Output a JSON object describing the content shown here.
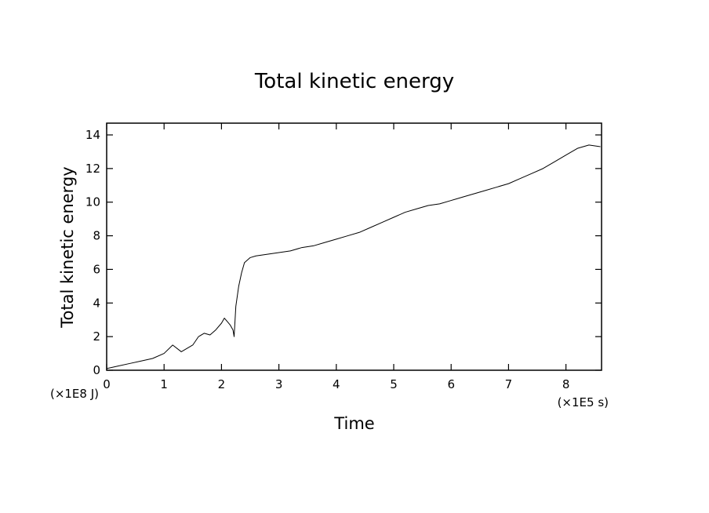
{
  "chart_data": {
    "type": "line",
    "title": "Total kinetic energy",
    "xlabel": "Time",
    "ylabel": "Total kinetic energy",
    "x_unit_label": "(×1E5 s)",
    "y_unit_label": "(×1E8 J)",
    "xlim": [
      0,
      8.62
    ],
    "ylim": [
      0,
      14.7
    ],
    "x_ticks": [
      0,
      1,
      2,
      3,
      4,
      5,
      6,
      7,
      8
    ],
    "y_ticks": [
      0,
      2,
      4,
      6,
      8,
      10,
      12,
      14
    ],
    "x_tick_labels": [
      "0",
      "1",
      "2",
      "3",
      "4",
      "5",
      "6",
      "7",
      "8"
    ],
    "y_tick_labels": [
      "0",
      "2",
      "4",
      "6",
      "8",
      "10",
      "12",
      "14"
    ],
    "grid": false,
    "legend": "none",
    "series": [
      {
        "color": "#000000",
        "x": [
          0,
          0.2,
          0.4,
          0.6,
          0.8,
          1.0,
          1.15,
          1.3,
          1.5,
          1.6,
          1.7,
          1.8,
          1.9,
          2.0,
          2.05,
          2.1,
          2.15,
          2.2,
          2.22,
          2.25,
          2.3,
          2.35,
          2.4,
          2.5,
          2.6,
          2.8,
          3.0,
          3.2,
          3.4,
          3.6,
          3.8,
          4.0,
          4.2,
          4.4,
          4.6,
          4.8,
          5.0,
          5.2,
          5.4,
          5.6,
          5.8,
          6.0,
          6.2,
          6.4,
          6.6,
          6.8,
          7.0,
          7.2,
          7.4,
          7.6,
          7.8,
          8.0,
          8.2,
          8.4,
          8.6
        ],
        "y": [
          0.1,
          0.25,
          0.4,
          0.55,
          0.7,
          1.0,
          1.5,
          1.1,
          1.5,
          2.0,
          2.2,
          2.1,
          2.4,
          2.8,
          3.1,
          2.9,
          2.7,
          2.4,
          2.0,
          3.8,
          5.0,
          5.8,
          6.4,
          6.7,
          6.8,
          6.9,
          7.0,
          7.1,
          7.3,
          7.4,
          7.6,
          7.8,
          8.0,
          8.2,
          8.5,
          8.8,
          9.1,
          9.4,
          9.6,
          9.8,
          9.9,
          10.1,
          10.3,
          10.5,
          10.7,
          10.9,
          11.1,
          11.4,
          11.7,
          12.0,
          12.4,
          12.8,
          13.2,
          13.4,
          13.3
        ]
      }
    ]
  }
}
